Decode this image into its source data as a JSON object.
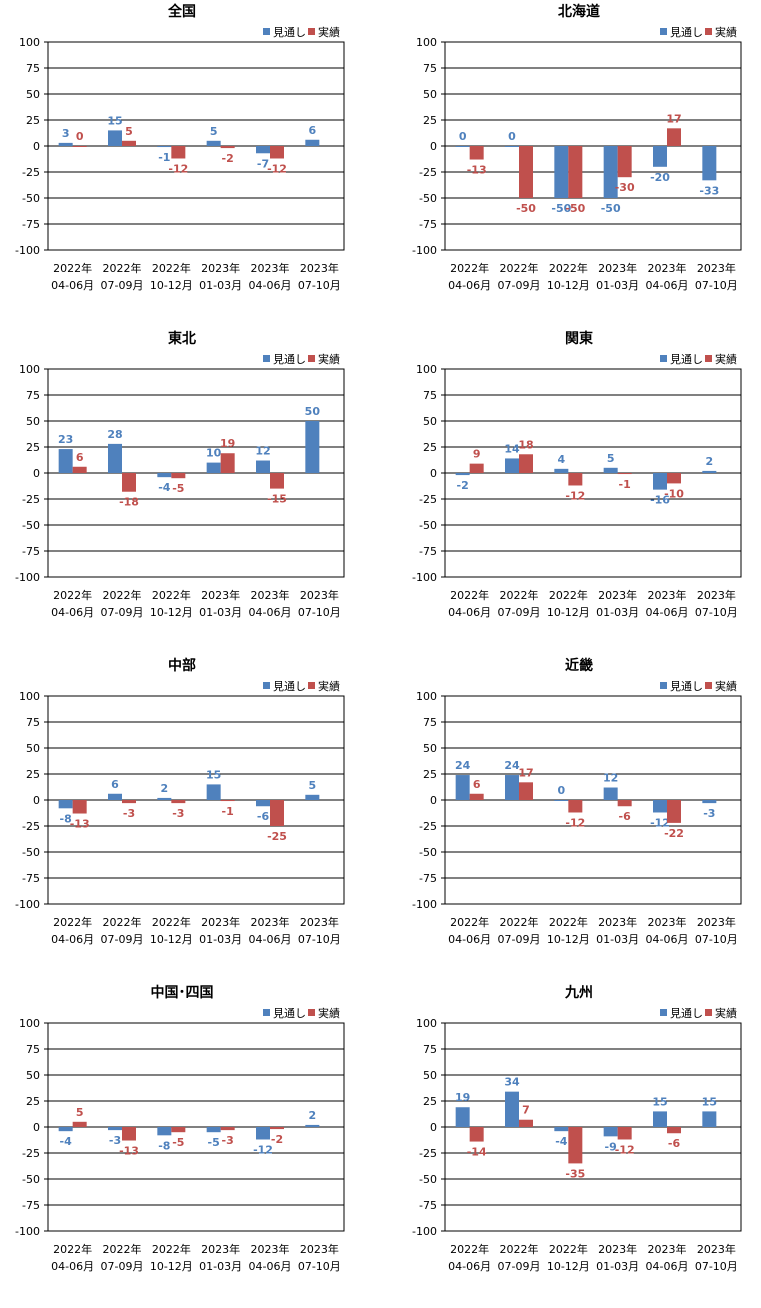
{
  "legend": {
    "forecast": "見通し",
    "actual": "実績"
  },
  "colors": {
    "forecast": "#4F81BD",
    "actual": "#C0504D",
    "grid": "#000000"
  },
  "chart_data": [
    {
      "type": "bar",
      "title": "全国",
      "categories": [
        [
          "2022年",
          "04-06月"
        ],
        [
          "2022年",
          "07-09月"
        ],
        [
          "2022年",
          "10-12月"
        ],
        [
          "2023年",
          "01-03月"
        ],
        [
          "2023年",
          "04-06月"
        ],
        [
          "2023年",
          "07-10月"
        ]
      ],
      "ylim": [
        -100,
        100
      ],
      "yticks": [
        100,
        75,
        50,
        25,
        0,
        -25,
        -50,
        -75,
        -100
      ],
      "grid": true,
      "legend_position": "top-right",
      "series": [
        {
          "name": "見通し",
          "values": [
            3,
            15,
            -1,
            5,
            -7,
            6
          ]
        },
        {
          "name": "実績",
          "values": [
            0,
            5,
            -12,
            -2,
            -12,
            null
          ]
        }
      ]
    },
    {
      "type": "bar",
      "title": "北海道",
      "categories": [
        [
          "2022年",
          "04-06月"
        ],
        [
          "2022年",
          "07-09月"
        ],
        [
          "2022年",
          "10-12月"
        ],
        [
          "2023年",
          "01-03月"
        ],
        [
          "2023年",
          "04-06月"
        ],
        [
          "2023年",
          "07-10月"
        ]
      ],
      "ylim": [
        -100,
        100
      ],
      "yticks": [
        100,
        75,
        50,
        25,
        0,
        -25,
        -50,
        -75,
        -100
      ],
      "grid": true,
      "legend_position": "top-right",
      "series": [
        {
          "name": "見通し",
          "values": [
            0,
            0,
            -50,
            -50,
            -20,
            -33
          ]
        },
        {
          "name": "実績",
          "values": [
            -13,
            -50,
            -50,
            -30,
            17,
            null
          ]
        }
      ]
    },
    {
      "type": "bar",
      "title": "東北",
      "categories": [
        [
          "2022年",
          "04-06月"
        ],
        [
          "2022年",
          "07-09月"
        ],
        [
          "2022年",
          "10-12月"
        ],
        [
          "2023年",
          "01-03月"
        ],
        [
          "2023年",
          "04-06月"
        ],
        [
          "2023年",
          "07-10月"
        ]
      ],
      "ylim": [
        -100,
        100
      ],
      "yticks": [
        100,
        75,
        50,
        25,
        0,
        -25,
        -50,
        -75,
        -100
      ],
      "grid": true,
      "legend_position": "top-right",
      "series": [
        {
          "name": "見通し",
          "values": [
            23,
            28,
            -4,
            10,
            12,
            50
          ]
        },
        {
          "name": "実績",
          "values": [
            6,
            -18,
            -5,
            19,
            -15,
            null
          ]
        }
      ]
    },
    {
      "type": "bar",
      "title": "関東",
      "categories": [
        [
          "2022年",
          "04-06月"
        ],
        [
          "2022年",
          "07-09月"
        ],
        [
          "2022年",
          "10-12月"
        ],
        [
          "2023年",
          "01-03月"
        ],
        [
          "2023年",
          "04-06月"
        ],
        [
          "2023年",
          "07-10月"
        ]
      ],
      "ylim": [
        -100,
        100
      ],
      "yticks": [
        100,
        75,
        50,
        25,
        0,
        -25,
        -50,
        -75,
        -100
      ],
      "grid": true,
      "legend_position": "top-right",
      "series": [
        {
          "name": "見通し",
          "values": [
            -2,
            14,
            4,
            5,
            -16,
            2
          ]
        },
        {
          "name": "実績",
          "values": [
            9,
            18,
            -12,
            -1,
            -10,
            null
          ]
        }
      ]
    },
    {
      "type": "bar",
      "title": "中部",
      "categories": [
        [
          "2022年",
          "04-06月"
        ],
        [
          "2022年",
          "07-09月"
        ],
        [
          "2022年",
          "10-12月"
        ],
        [
          "2023年",
          "01-03月"
        ],
        [
          "2023年",
          "04-06月"
        ],
        [
          "2023年",
          "07-10月"
        ]
      ],
      "ylim": [
        -100,
        100
      ],
      "yticks": [
        100,
        75,
        50,
        25,
        0,
        -25,
        -50,
        -75,
        -100
      ],
      "grid": true,
      "legend_position": "top-right",
      "series": [
        {
          "name": "見通し",
          "values": [
            -8,
            6,
            2,
            15,
            -6,
            5
          ]
        },
        {
          "name": "実績",
          "values": [
            -13,
            -3,
            -3,
            -1,
            -25,
            null
          ]
        }
      ]
    },
    {
      "type": "bar",
      "title": "近畿",
      "categories": [
        [
          "2022年",
          "04-06月"
        ],
        [
          "2022年",
          "07-09月"
        ],
        [
          "2022年",
          "10-12月"
        ],
        [
          "2023年",
          "01-03月"
        ],
        [
          "2023年",
          "04-06月"
        ],
        [
          "2023年",
          "07-10月"
        ]
      ],
      "ylim": [
        -100,
        100
      ],
      "yticks": [
        100,
        75,
        50,
        25,
        0,
        -25,
        -50,
        -75,
        -100
      ],
      "grid": true,
      "legend_position": "top-right",
      "series": [
        {
          "name": "見通し",
          "values": [
            24,
            24,
            0,
            12,
            -12,
            -3
          ]
        },
        {
          "name": "実績",
          "values": [
            6,
            17,
            -12,
            -6,
            -22,
            null
          ]
        }
      ]
    },
    {
      "type": "bar",
      "title": "中国･四国",
      "categories": [
        [
          "2022年",
          "04-06月"
        ],
        [
          "2022年",
          "07-09月"
        ],
        [
          "2022年",
          "10-12月"
        ],
        [
          "2023年",
          "01-03月"
        ],
        [
          "2023年",
          "04-06月"
        ],
        [
          "2023年",
          "07-10月"
        ]
      ],
      "ylim": [
        -100,
        100
      ],
      "yticks": [
        100,
        75,
        50,
        25,
        0,
        -25,
        -50,
        -75,
        -100
      ],
      "grid": true,
      "legend_position": "top-right",
      "series": [
        {
          "name": "見通し",
          "values": [
            -4,
            -3,
            -8,
            -5,
            -12,
            2
          ]
        },
        {
          "name": "実績",
          "values": [
            5,
            -13,
            -5,
            -3,
            -2,
            null
          ]
        }
      ]
    },
    {
      "type": "bar",
      "title": "九州",
      "categories": [
        [
          "2022年",
          "04-06月"
        ],
        [
          "2022年",
          "07-09月"
        ],
        [
          "2022年",
          "10-12月"
        ],
        [
          "2023年",
          "01-03月"
        ],
        [
          "2023年",
          "04-06月"
        ],
        [
          "2023年",
          "07-10月"
        ]
      ],
      "ylim": [
        -100,
        100
      ],
      "yticks": [
        100,
        75,
        50,
        25,
        0,
        -25,
        -50,
        -75,
        -100
      ],
      "grid": true,
      "legend_position": "top-right",
      "series": [
        {
          "name": "見通し",
          "values": [
            19,
            34,
            -4,
            -9,
            15,
            15
          ]
        },
        {
          "name": "実績",
          "values": [
            -14,
            7,
            -35,
            -12,
            -6,
            null
          ]
        }
      ]
    }
  ]
}
